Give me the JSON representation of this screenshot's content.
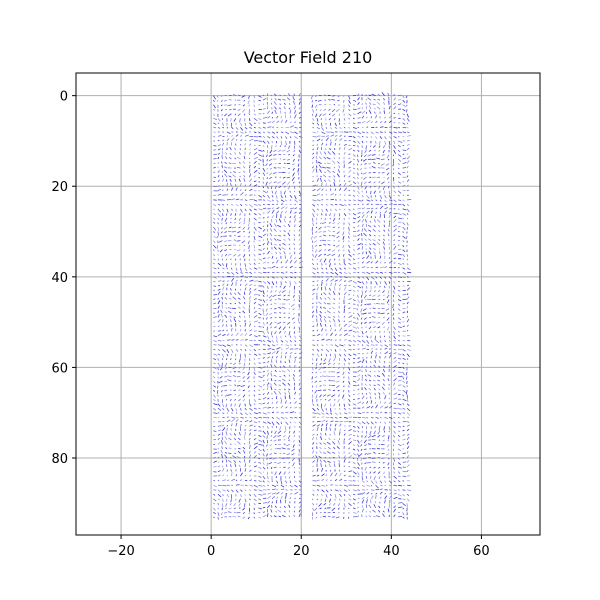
{
  "chart_data": {
    "type": "quiver",
    "title": "Vector Field 210",
    "xlabel": "",
    "ylabel": "",
    "xlim": [
      -30,
      73
    ],
    "ylim": [
      97,
      -5
    ],
    "y_inverted": true,
    "x_ticks": [
      -20,
      0,
      20,
      40,
      60
    ],
    "y_ticks": [
      0,
      20,
      40,
      60,
      80
    ],
    "grid": true,
    "arrow_color": "#0000cc",
    "field": {
      "x_range": [
        0.5,
        43.5
      ],
      "y_range": [
        0,
        93
      ],
      "step": 1,
      "gap_columns": [
        20.5,
        21.5
      ],
      "vector_magnitude_max": 0.12
    }
  }
}
